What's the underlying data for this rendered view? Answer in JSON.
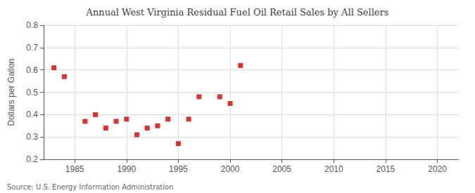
{
  "chart_data": {
    "type": "scatter",
    "title": "Annual West Virginia Residual Fuel Oil Retail Sales by All Sellers",
    "ylabel": "Dollars per Gallon",
    "annotations": [
      "Source: U.S. Energy Information Administration"
    ],
    "x": [
      1983,
      1984,
      1986,
      1987,
      1988,
      1989,
      1990,
      1991,
      1992,
      1993,
      1994,
      1995,
      1996,
      1997,
      1999,
      2000,
      2001
    ],
    "values": [
      0.61,
      0.57,
      0.37,
      0.4,
      0.34,
      0.37,
      0.38,
      0.31,
      0.34,
      0.35,
      0.38,
      0.27,
      0.38,
      0.48,
      0.48,
      0.45,
      0.62
    ],
    "color": "#cc0000",
    "marker": "square",
    "xlim": [
      1982,
      2022
    ],
    "ylim": [
      0.2,
      0.8
    ],
    "xticks": [
      1985,
      1990,
      1995,
      2000,
      2005,
      2010,
      2015,
      2020
    ],
    "yticks": [
      0.2,
      0.3,
      0.4,
      0.5,
      0.6,
      0.7,
      0.8
    ],
    "grid": true
  }
}
